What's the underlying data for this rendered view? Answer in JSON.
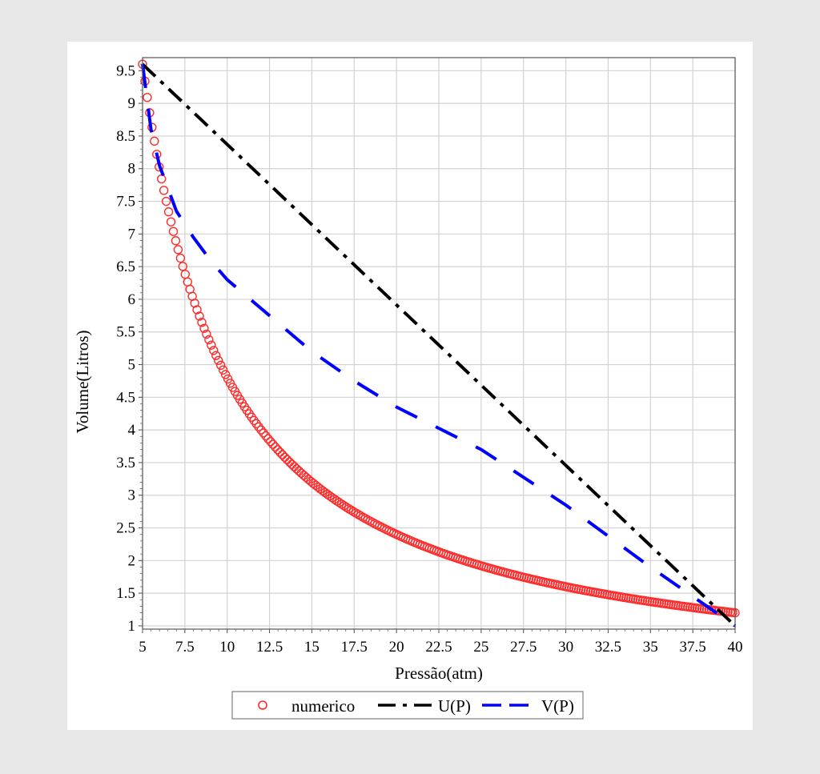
{
  "chart_data": {
    "type": "line",
    "title": "",
    "xlabel": "Pressão(atm)",
    "ylabel": "Volume(Litros)",
    "xlim": [
      5,
      40
    ],
    "ylim": [
      0.95,
      9.7
    ],
    "grid": true,
    "legend_position": "bottom",
    "x_ticks": [
      "5",
      "7.5",
      "10",
      "12.5",
      "15",
      "17.5",
      "20",
      "22.5",
      "25",
      "27.5",
      "30",
      "32.5",
      "35",
      "37.5",
      "40"
    ],
    "y_ticks": [
      "1",
      "1.5",
      "2",
      "2.5",
      "3",
      "3.5",
      "4",
      "4.5",
      "5",
      "5.5",
      "6",
      "6.5",
      "7",
      "7.5",
      "8",
      "8.5",
      "9",
      "9.5"
    ],
    "series": [
      {
        "name": "numerico",
        "style": "markers",
        "marker": "circle-open",
        "color": "#ff2a2a",
        "function": "V = 48 / P",
        "x_start": 5,
        "x_end": 40,
        "x_step": 0.14
      },
      {
        "name": "U(P)",
        "style": "dash-dot",
        "color": "#000000",
        "x": [
          5,
          40
        ],
        "y": [
          9.6,
          1.0
        ]
      },
      {
        "name": "V(P)",
        "style": "dashed",
        "color": "#0000ff",
        "x": [
          5,
          5.5,
          6,
          7,
          8,
          9,
          10,
          12.5,
          15,
          17.5,
          20,
          25,
          30,
          35,
          40
        ],
        "y": [
          9.6,
          8.6,
          8.05,
          7.35,
          6.95,
          6.6,
          6.3,
          5.75,
          5.2,
          4.75,
          4.35,
          3.7,
          2.85,
          1.9,
          1.0
        ]
      }
    ]
  }
}
